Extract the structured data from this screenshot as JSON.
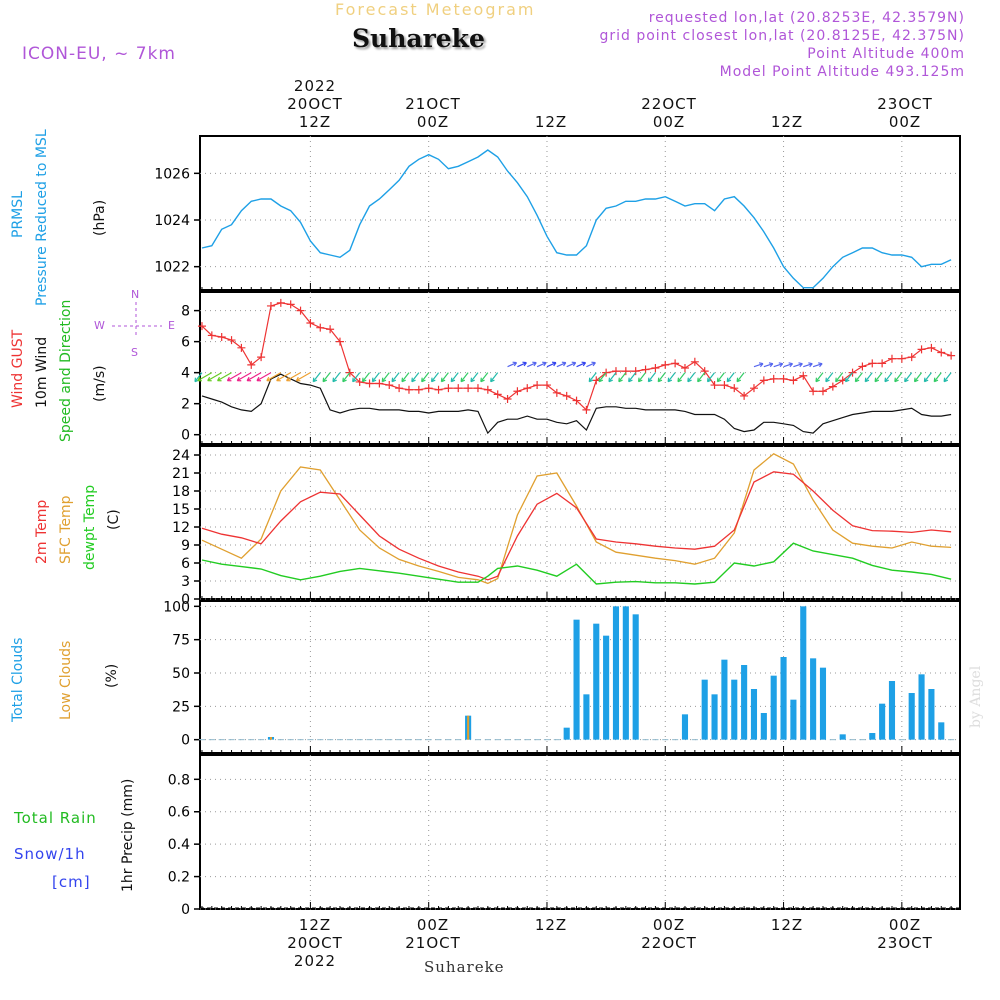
{
  "header": {
    "model": "ICON-EU, ~ 7km",
    "product_title": "Forecast Meteogram",
    "location": "Suhareke",
    "requested": "requested lon,lat (20.8253E, 42.3579N)",
    "grid_point": "grid point closest lon,lat (20.8125E, 42.375N)",
    "point_altitude": "Point Altitude 400m",
    "model_altitude": "Model Point Altitude 493.125m"
  },
  "time_axis": {
    "top_year": "2022",
    "labels": [
      {
        "hour": 12,
        "top_date": "20OCT",
        "top_time": "12Z",
        "bottom_time": "12Z",
        "bottom_date": "20OCT"
      },
      {
        "hour": 24,
        "top_date": "21OCT",
        "top_time": "00Z",
        "bottom_time": "00Z",
        "bottom_date": "21OCT"
      },
      {
        "hour": 36,
        "top_date": "",
        "top_time": "12Z",
        "bottom_time": "12Z",
        "bottom_date": ""
      },
      {
        "hour": 48,
        "top_date": "22OCT",
        "top_time": "00Z",
        "bottom_time": "00Z",
        "bottom_date": "22OCT"
      },
      {
        "hour": 60,
        "top_date": "",
        "top_time": "12Z",
        "bottom_time": "12Z",
        "bottom_date": ""
      },
      {
        "hour": 72,
        "top_date": "23OCT",
        "top_time": "00Z",
        "bottom_time": "00Z",
        "bottom_date": "23OCT"
      }
    ],
    "bottom_year": "2022",
    "bottom_location": "Suhareke",
    "range_hours": [
      0.8,
      77.9
    ]
  },
  "legends": {
    "pressure": {
      "name1": "PRMSL",
      "name2": "Pressure Reduced to MSL",
      "unit": "(hPa)",
      "color": "#1ea0e6"
    },
    "wind": {
      "gust": "Wind GUST",
      "wind1": "10m Wind",
      "wind2": "Speed and Direction",
      "unit": "(m/s)",
      "compass_n": "N",
      "compass_s": "S",
      "compass_w": "W",
      "compass_e": "E",
      "gust_color": "#ee3333",
      "wind_color": "#111111",
      "dir_color": "#22bb22"
    },
    "temp": {
      "t2m": "2m Temp",
      "sfc": "SFC Temp",
      "dew": "dewpt Temp",
      "unit": "(C)",
      "t2m_color": "#ee3333",
      "sfc_color": "#e0a030",
      "dew_color": "#22cc22"
    },
    "clouds": {
      "total": "Total Clouds",
      "low": "Low Clouds",
      "unit": "(%)",
      "total_color": "#1ea0e6",
      "low_color": "#e0a030"
    },
    "precip": {
      "rain": "Total  Rain",
      "snow": "Snow/1h",
      "cm": "[cm]",
      "unit": "1hr Precip (mm)",
      "rain_color": "#22bb22",
      "snow_color": "#3344ee"
    },
    "byline": "by Angel"
  },
  "chart_data": [
    {
      "type": "line",
      "title": "PRMSL Pressure Reduced to MSL",
      "ylabel": "(hPa)",
      "ylim": [
        1021.0,
        1027.6
      ],
      "yticks": [
        1022,
        1024,
        1026
      ],
      "series": [
        {
          "name": "PRMSL",
          "x": [
            1,
            2,
            3,
            4,
            5,
            6,
            7,
            8,
            9,
            10,
            11,
            12,
            13,
            14,
            15,
            16,
            17,
            18,
            19,
            20,
            21,
            22,
            23,
            24,
            25,
            26,
            27,
            28,
            29,
            30,
            31,
            32,
            33,
            34,
            35,
            36,
            37,
            38,
            39,
            40,
            41,
            42,
            43,
            44,
            45,
            46,
            47,
            48,
            49,
            50,
            51,
            52,
            53,
            54,
            55,
            56,
            57,
            58,
            59,
            60,
            61,
            62,
            63,
            64,
            65,
            66,
            67,
            68,
            69,
            70,
            71,
            72,
            73,
            74,
            75,
            76,
            77
          ],
          "values": [
            1022.8,
            1022.9,
            1023.6,
            1023.8,
            1024.4,
            1024.8,
            1024.9,
            1024.9,
            1024.6,
            1024.4,
            1023.9,
            1023.1,
            1022.6,
            1022.5,
            1022.4,
            1022.7,
            1023.8,
            1024.6,
            1024.9,
            1025.3,
            1025.7,
            1026.3,
            1026.6,
            1026.8,
            1026.6,
            1026.2,
            1026.3,
            1026.5,
            1026.7,
            1027.0,
            1026.7,
            1026.1,
            1025.6,
            1025.0,
            1024.2,
            1023.3,
            1022.6,
            1022.5,
            1022.5,
            1022.9,
            1024.0,
            1024.5,
            1024.6,
            1024.8,
            1024.8,
            1024.9,
            1024.9,
            1025.0,
            1024.8,
            1024.6,
            1024.7,
            1024.7,
            1024.4,
            1024.9,
            1025.0,
            1024.6,
            1024.1,
            1023.5,
            1022.8,
            1022.0,
            1021.5,
            1021.1,
            1021.1,
            1021.5,
            1022.0,
            1022.4,
            1022.6,
            1022.8,
            1022.8,
            1022.6,
            1022.5,
            1022.5,
            1022.4,
            1022.0,
            1022.1,
            1022.1,
            1022.3
          ]
        }
      ]
    },
    {
      "type": "line",
      "title": "Wind GUST / 10m Wind Speed and Direction",
      "ylabel": "(m/s)",
      "ylim": [
        -0.6,
        9.2
      ],
      "yticks": [
        0,
        2,
        4,
        6,
        8
      ],
      "series": [
        {
          "name": "Wind GUST",
          "x": [
            1,
            2,
            3,
            4,
            5,
            6,
            7,
            8,
            9,
            10,
            11,
            12,
            13,
            14,
            15,
            16,
            17,
            18,
            19,
            20,
            21,
            22,
            23,
            24,
            25,
            26,
            27,
            28,
            29,
            30,
            31,
            32,
            33,
            34,
            35,
            36,
            37,
            38,
            39,
            40,
            41,
            42,
            43,
            44,
            45,
            46,
            47,
            48,
            49,
            50,
            51,
            52,
            53,
            54,
            55,
            56,
            57,
            58,
            59,
            60,
            61,
            62,
            63,
            64,
            65,
            66,
            67,
            68,
            69,
            70,
            71,
            72,
            73,
            74,
            75,
            76,
            77
          ],
          "values": [
            7.0,
            6.4,
            6.3,
            6.1,
            5.6,
            4.5,
            5.0,
            8.3,
            8.5,
            8.4,
            8.0,
            7.2,
            6.9,
            6.8,
            6.0,
            4.0,
            3.4,
            3.3,
            3.3,
            3.2,
            3.0,
            2.9,
            2.9,
            3.0,
            2.9,
            3.0,
            3.0,
            3.0,
            3.0,
            2.9,
            2.6,
            2.3,
            2.8,
            3.0,
            3.2,
            3.2,
            2.7,
            2.5,
            2.2,
            1.6,
            3.5,
            4.0,
            4.1,
            4.1,
            4.1,
            4.2,
            4.3,
            4.5,
            4.6,
            4.3,
            4.7,
            4.1,
            3.2,
            3.2,
            3.0,
            2.5,
            3.0,
            3.5,
            3.6,
            3.6,
            3.5,
            3.8,
            2.8,
            2.8,
            3.1,
            3.5,
            4.0,
            4.4,
            4.6,
            4.6,
            4.9,
            4.9,
            5.0,
            5.5,
            5.6,
            5.3,
            5.1
          ]
        },
        {
          "name": "10m Wind",
          "x": [
            1,
            2,
            3,
            4,
            5,
            6,
            7,
            8,
            9,
            10,
            11,
            12,
            13,
            14,
            15,
            16,
            17,
            18,
            19,
            20,
            21,
            22,
            23,
            24,
            25,
            26,
            27,
            28,
            29,
            30,
            31,
            32,
            33,
            34,
            35,
            36,
            37,
            38,
            39,
            40,
            41,
            42,
            43,
            44,
            45,
            46,
            47,
            48,
            49,
            50,
            51,
            52,
            53,
            54,
            55,
            56,
            57,
            58,
            59,
            60,
            61,
            62,
            63,
            64,
            65,
            66,
            67,
            68,
            69,
            70,
            71,
            72,
            73,
            74,
            75,
            76,
            77
          ],
          "values": [
            2.5,
            2.3,
            2.1,
            1.8,
            1.6,
            1.5,
            2.0,
            3.6,
            3.9,
            3.6,
            3.3,
            3.2,
            3.0,
            1.6,
            1.4,
            1.6,
            1.7,
            1.7,
            1.6,
            1.6,
            1.6,
            1.5,
            1.5,
            1.4,
            1.5,
            1.5,
            1.5,
            1.6,
            1.5,
            0.1,
            0.8,
            1.0,
            1.0,
            1.2,
            1.0,
            1.0,
            0.8,
            0.7,
            0.9,
            0.3,
            1.7,
            1.8,
            1.8,
            1.7,
            1.7,
            1.6,
            1.6,
            1.6,
            1.6,
            1.5,
            1.3,
            1.3,
            1.3,
            1.0,
            0.4,
            0.2,
            0.3,
            0.8,
            0.8,
            0.7,
            0.6,
            0.2,
            0.1,
            0.7,
            0.9,
            1.1,
            1.3,
            1.4,
            1.5,
            1.5,
            1.5,
            1.6,
            1.7,
            1.3,
            1.2,
            1.2,
            1.3
          ]
        }
      ],
      "wind_direction": {
        "arrow_row_level": 4.0,
        "dominant": "NE (blowing to SW)",
        "mid_period": "W (blowing to E)"
      }
    },
    {
      "type": "line",
      "title": "2m Temp / SFC Temp / dewpt Temp",
      "ylabel": "(C)",
      "ylim": [
        0,
        25.5
      ],
      "yticks": [
        0,
        3,
        6,
        9,
        12,
        15,
        18,
        21,
        24
      ],
      "series": [
        {
          "name": "2m Temp",
          "x": [
            1,
            3,
            5,
            7,
            9,
            11,
            13,
            15,
            17,
            19,
            21,
            23,
            25,
            27,
            29,
            30,
            31,
            33,
            35,
            37,
            39,
            41,
            43,
            45,
            47,
            49,
            51,
            53,
            55,
            57,
            59,
            61,
            63,
            65,
            67,
            69,
            71,
            73,
            75,
            77
          ],
          "values": [
            11.8,
            10.8,
            10.2,
            9.2,
            13.0,
            16.2,
            17.8,
            17.5,
            14.0,
            10.5,
            8.3,
            6.8,
            5.5,
            4.5,
            3.8,
            3.2,
            3.8,
            10.5,
            15.8,
            17.6,
            15.2,
            10.0,
            9.5,
            9.2,
            8.8,
            8.5,
            8.3,
            8.8,
            11.5,
            19.5,
            21.2,
            20.8,
            18.0,
            14.8,
            12.2,
            11.4,
            11.3,
            11.1,
            11.5,
            11.2
          ]
        },
        {
          "name": "SFC Temp",
          "x": [
            1,
            3,
            5,
            7,
            9,
            11,
            13,
            15,
            17,
            19,
            21,
            23,
            25,
            27,
            29,
            30,
            31,
            33,
            35,
            37,
            39,
            41,
            43,
            45,
            47,
            49,
            51,
            53,
            55,
            57,
            59,
            61,
            63,
            65,
            67,
            69,
            71,
            73,
            75,
            77
          ],
          "values": [
            9.8,
            8.3,
            6.8,
            10.0,
            18.0,
            22.0,
            21.5,
            16.5,
            11.5,
            8.5,
            6.6,
            5.5,
            4.6,
            3.6,
            3.2,
            2.6,
            3.4,
            14.0,
            20.5,
            21.0,
            15.5,
            9.5,
            7.8,
            7.3,
            6.8,
            6.4,
            5.8,
            6.8,
            11.0,
            21.5,
            24.2,
            22.5,
            16.5,
            11.5,
            9.3,
            8.8,
            8.5,
            9.5,
            8.8,
            8.6
          ]
        },
        {
          "name": "dewpt Temp",
          "x": [
            1,
            3,
            5,
            7,
            9,
            11,
            13,
            15,
            17,
            19,
            21,
            23,
            25,
            27,
            29,
            30,
            31,
            33,
            35,
            37,
            39,
            41,
            43,
            45,
            47,
            49,
            51,
            53,
            55,
            57,
            59,
            61,
            63,
            65,
            67,
            69,
            71,
            73,
            75,
            77
          ],
          "values": [
            6.5,
            5.8,
            5.4,
            5.0,
            3.9,
            3.2,
            3.8,
            4.6,
            5.1,
            4.7,
            4.3,
            3.8,
            3.3,
            2.8,
            2.8,
            3.8,
            5.1,
            5.5,
            4.8,
            3.8,
            5.8,
            2.5,
            2.8,
            2.9,
            2.7,
            2.7,
            2.5,
            2.8,
            6.0,
            5.5,
            6.2,
            9.3,
            8.0,
            7.4,
            6.8,
            5.6,
            4.8,
            4.5,
            4.1,
            3.3
          ]
        }
      ]
    },
    {
      "type": "bar",
      "title": "Total Clouds / Low Clouds",
      "ylabel": "(%)",
      "ylim": [
        -10,
        104
      ],
      "yticks": [
        0,
        25,
        50,
        75,
        100
      ],
      "series": [
        {
          "name": "Total Clouds",
          "x": [
            1,
            2,
            3,
            4,
            5,
            6,
            7,
            8,
            9,
            10,
            11,
            12,
            13,
            14,
            15,
            16,
            17,
            18,
            19,
            20,
            21,
            22,
            23,
            24,
            25,
            26,
            27,
            28,
            29,
            30,
            31,
            32,
            33,
            34,
            35,
            36,
            37,
            38,
            39,
            40,
            41,
            42,
            43,
            44,
            45,
            46,
            47,
            48,
            49,
            50,
            51,
            52,
            53,
            54,
            55,
            56,
            57,
            58,
            59,
            60,
            61,
            62,
            63,
            64,
            65,
            66,
            67,
            68,
            69,
            70,
            71,
            72,
            73,
            74,
            75,
            76,
            77
          ],
          "values": [
            0,
            0,
            0,
            0,
            0,
            0,
            0,
            2,
            0,
            0,
            0,
            0,
            0,
            0,
            0,
            0,
            0,
            0,
            0,
            0,
            0,
            0,
            0,
            0,
            0,
            0,
            0,
            18,
            0,
            0,
            0,
            0,
            0,
            0,
            0,
            0,
            0,
            9,
            90,
            34,
            87,
            78,
            100,
            100,
            94,
            0,
            0,
            0,
            0,
            19,
            0,
            45,
            34,
            60,
            45,
            56,
            38,
            20,
            48,
            62,
            30,
            100,
            61,
            54,
            0,
            4,
            0,
            0,
            5,
            27,
            44,
            0,
            35,
            49,
            38,
            13,
            0
          ]
        },
        {
          "name": "Low Clouds",
          "x": [
            8,
            28
          ],
          "values": [
            2,
            18
          ]
        }
      ]
    },
    {
      "type": "bar",
      "title": "1hr Precip",
      "ylabel": "1hr Precip (mm)",
      "ylim": [
        0,
        0.95
      ],
      "yticks": [
        0,
        0.2,
        0.4,
        0.6,
        0.8
      ],
      "series": [
        {
          "name": "Total Rain",
          "values": []
        },
        {
          "name": "Snow/1h",
          "values": []
        }
      ]
    }
  ]
}
